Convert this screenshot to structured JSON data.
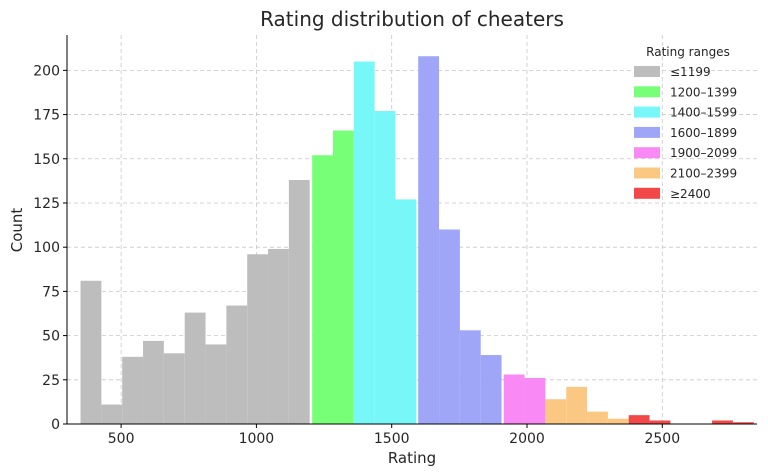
{
  "chart_data": {
    "type": "bar",
    "title": "Rating distribution of cheaters",
    "xlabel": "Rating",
    "ylabel": "Count",
    "xlim": [
      300,
      2850
    ],
    "ylim": [
      0,
      220
    ],
    "xticks": [
      500,
      1000,
      1500,
      2000,
      2500
    ],
    "yticks": [
      0,
      25,
      50,
      75,
      100,
      125,
      150,
      175,
      200
    ],
    "grid": true,
    "bin_width": 77,
    "legend": {
      "title": "Rating ranges",
      "placement": "top-right"
    },
    "series": [
      {
        "name": "≤1199",
        "color": "#bdbdbd",
        "bins": [
          {
            "start": 350,
            "count": 81
          },
          {
            "start": 427,
            "count": 11
          },
          {
            "start": 504,
            "count": 38
          },
          {
            "start": 581,
            "count": 47
          },
          {
            "start": 658,
            "count": 40
          },
          {
            "start": 735,
            "count": 63
          },
          {
            "start": 812,
            "count": 45
          },
          {
            "start": 889,
            "count": 67
          },
          {
            "start": 966,
            "count": 96
          },
          {
            "start": 1043,
            "count": 99
          },
          {
            "start": 1120,
            "count": 138
          }
        ]
      },
      {
        "name": "1200–1399",
        "color": "#77ff77",
        "bins": [
          {
            "start": 1206,
            "count": 152
          },
          {
            "start": 1283,
            "count": 166
          }
        ]
      },
      {
        "name": "1400–1599",
        "color": "#77f7f7",
        "bins": [
          {
            "start": 1360,
            "count": 205
          },
          {
            "start": 1437,
            "count": 177
          },
          {
            "start": 1514,
            "count": 127
          }
        ]
      },
      {
        "name": "1600–1899",
        "color": "#9fa6f7",
        "bins": [
          {
            "start": 1598,
            "count": 208
          },
          {
            "start": 1675,
            "count": 110
          },
          {
            "start": 1752,
            "count": 53
          },
          {
            "start": 1829,
            "count": 39
          }
        ]
      },
      {
        "name": "1900–2099",
        "color": "#f989f4",
        "bins": [
          {
            "start": 1914,
            "count": 28
          },
          {
            "start": 1991,
            "count": 26
          }
        ]
      },
      {
        "name": "2100–2399",
        "color": "#fbc883",
        "bins": [
          {
            "start": 2068,
            "count": 14
          },
          {
            "start": 2145,
            "count": 21
          },
          {
            "start": 2222,
            "count": 7
          },
          {
            "start": 2299,
            "count": 3
          }
        ]
      },
      {
        "name": "≥2400",
        "color": "#f24848",
        "bins": [
          {
            "start": 2376,
            "count": 5
          },
          {
            "start": 2453,
            "count": 2
          },
          {
            "start": 2684,
            "count": 2
          },
          {
            "start": 2761,
            "count": 1
          }
        ]
      }
    ]
  }
}
